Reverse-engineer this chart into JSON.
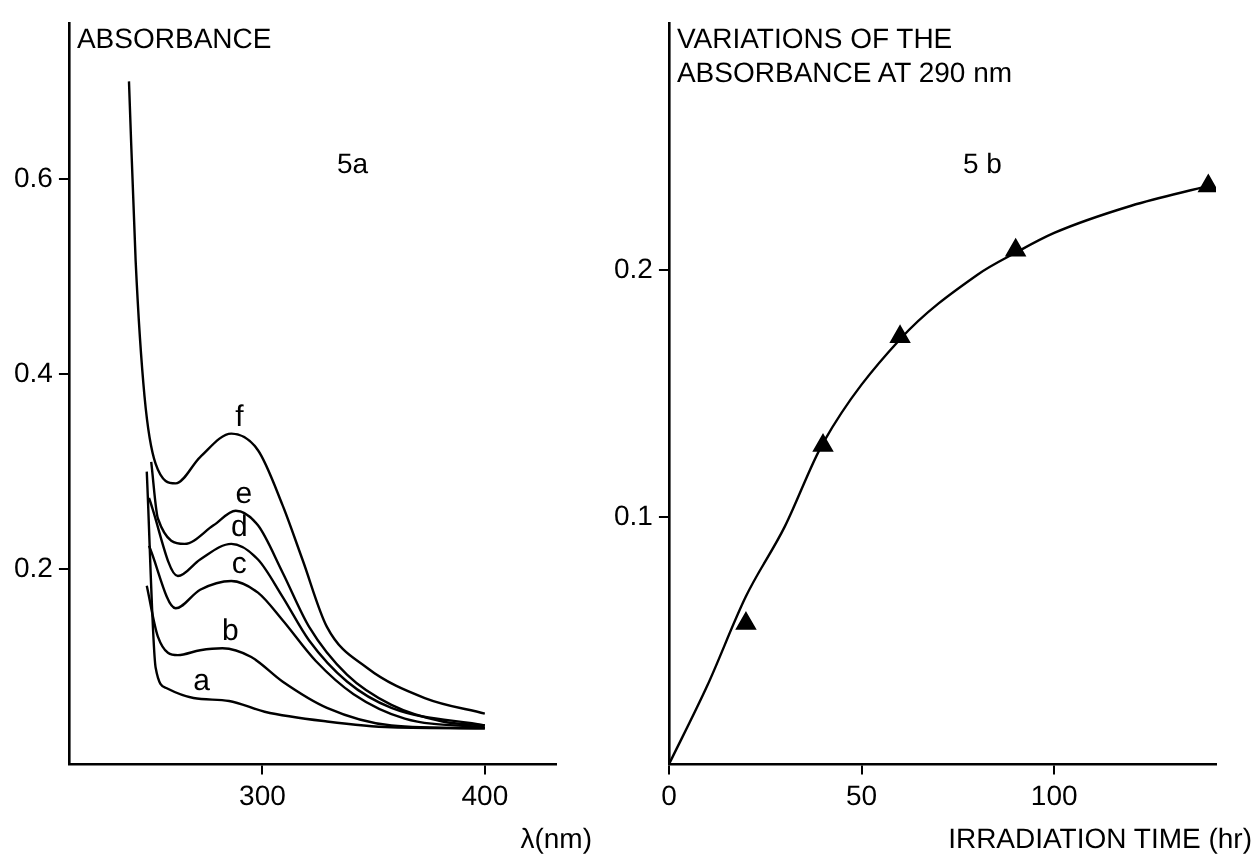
{
  "chart_data": [
    {
      "type": "line",
      "annotations": [
        "5a"
      ],
      "xlabel": "λ(nm)",
      "ylabel": "ABSORBANCE",
      "marker": "none",
      "grid": false,
      "legend": false,
      "xlim": [
        213,
        432
      ],
      "ylim": [
        0,
        0.76
      ],
      "xticks": [
        300,
        400
      ],
      "yticks": [
        0.2,
        0.4,
        0.6
      ],
      "series": [
        {
          "name": "a",
          "color": "#000000",
          "x": [
            248,
            252,
            257,
            269,
            285,
            301,
            329,
            358,
            400
          ],
          "values": [
            0.3,
            0.099,
            0.078,
            0.068,
            0.065,
            0.054,
            0.044,
            0.038,
            0.037
          ]
        },
        {
          "name": "b",
          "color": "#000000",
          "x": [
            248,
            253,
            262,
            272,
            282,
            295,
            309,
            329,
            358,
            400
          ],
          "values": [
            0.183,
            0.131,
            0.112,
            0.117,
            0.119,
            0.11,
            0.085,
            0.058,
            0.04,
            0.037
          ]
        },
        {
          "name": "c",
          "color": "#000000",
          "x": [
            249,
            261,
            272,
            286,
            298,
            309,
            324,
            341,
            364,
            400
          ],
          "values": [
            0.224,
            0.16,
            0.179,
            0.188,
            0.176,
            0.148,
            0.106,
            0.072,
            0.047,
            0.038
          ]
        },
        {
          "name": "d",
          "color": "#000000",
          "x": [
            249,
            262,
            272,
            286,
            298,
            309,
            321,
            338,
            358,
            400
          ],
          "values": [
            0.273,
            0.193,
            0.21,
            0.226,
            0.21,
            0.172,
            0.127,
            0.085,
            0.058,
            0.04
          ]
        },
        {
          "name": "e",
          "color": "#000000",
          "x": [
            250,
            253,
            265,
            278,
            288,
            298,
            309,
            321,
            338,
            358,
            381,
            400
          ],
          "values": [
            0.31,
            0.252,
            0.226,
            0.245,
            0.26,
            0.245,
            0.197,
            0.141,
            0.092,
            0.061,
            0.044,
            0.04
          ]
        },
        {
          "name": "f",
          "color": "#000000",
          "x": [
            240,
            243,
            247,
            252,
            261,
            272,
            286,
            298,
            309,
            318,
            329,
            347,
            373,
            400
          ],
          "values": [
            0.7,
            0.516,
            0.377,
            0.308,
            0.288,
            0.315,
            0.339,
            0.322,
            0.266,
            0.21,
            0.141,
            0.099,
            0.068,
            0.052
          ]
        }
      ]
    },
    {
      "type": "scatter",
      "annotations": [
        "5 b"
      ],
      "xlabel": "IRRADIATION TIME (hr)",
      "ylabel": "VARIATIONS OF THE ABSORBANCE AT 290 nm",
      "grid": false,
      "legend": false,
      "xlim": [
        0,
        142
      ],
      "ylim": [
        0,
        0.3
      ],
      "xticks": [
        0,
        50,
        100
      ],
      "yticks": [
        0.1,
        0.2
      ],
      "series": [
        {
          "color": "#000000",
          "marker": "triangle",
          "x": [
            20,
            40,
            60,
            90,
            140
          ],
          "values": [
            0.057,
            0.129,
            0.173,
            0.208,
            0.234
          ]
        },
        {
          "type": "line",
          "color": "#000000",
          "x": [
            0,
            10,
            20,
            30,
            40,
            60,
            80,
            90,
            100,
            120,
            140
          ],
          "values": [
            0,
            0.032,
            0.068,
            0.096,
            0.13,
            0.172,
            0.198,
            0.207,
            0.215,
            0.226,
            0.234
          ]
        }
      ]
    }
  ]
}
